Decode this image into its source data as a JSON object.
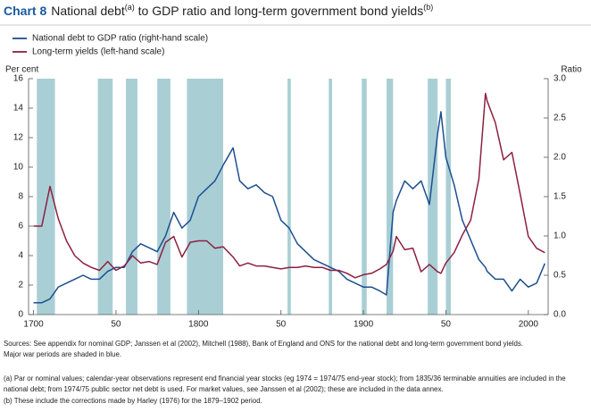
{
  "chart_data": {
    "type": "line",
    "title": {
      "label": "Chart 8",
      "parts": [
        "National debt",
        "(a)",
        " to GDP ratio and long-term government bond yields",
        "(b)"
      ]
    },
    "ylabel": "Per cent",
    "y2label": "Ratio",
    "x": [
      1700,
      1705,
      1710,
      1715,
      1720,
      1725,
      1730,
      1735,
      1740,
      1745,
      1750,
      1755,
      1760,
      1765,
      1770,
      1775,
      1780,
      1785,
      1790,
      1795,
      1800,
      1805,
      1810,
      1815,
      1821,
      1825,
      1830,
      1835,
      1840,
      1845,
      1850,
      1855,
      1860,
      1865,
      1870,
      1875,
      1880,
      1885,
      1890,
      1895,
      1900,
      1905,
      1910,
      1914,
      1918,
      1920,
      1925,
      1930,
      1935,
      1940,
      1945,
      1947,
      1950,
      1955,
      1960,
      1965,
      1970,
      1974,
      1975,
      1980,
      1985,
      1990,
      1995,
      2000,
      2005,
      2010
    ],
    "series": [
      {
        "name": "National debt to GDP ratio (right-hand scale)",
        "color": "#1d4f91",
        "axis": "y2",
        "values": [
          0.15,
          0.15,
          0.2,
          0.35,
          0.4,
          0.45,
          0.5,
          0.45,
          0.45,
          0.55,
          0.6,
          0.6,
          0.8,
          0.9,
          0.85,
          0.8,
          1.0,
          1.3,
          1.1,
          1.2,
          1.5,
          1.6,
          1.7,
          1.9,
          2.12,
          1.7,
          1.6,
          1.65,
          1.55,
          1.5,
          1.2,
          1.1,
          0.9,
          0.8,
          0.7,
          0.65,
          0.6,
          0.55,
          0.45,
          0.4,
          0.35,
          0.35,
          0.3,
          0.25,
          1.3,
          1.45,
          1.7,
          1.6,
          1.7,
          1.4,
          2.3,
          2.58,
          2.0,
          1.65,
          1.2,
          0.95,
          0.7,
          0.6,
          0.55,
          0.45,
          0.45,
          0.3,
          0.45,
          0.35,
          0.4,
          0.65
        ]
      },
      {
        "name": "Long-term yields (left-hand scale)",
        "color": "#8c2040",
        "values": [
          6.0,
          6.0,
          8.7,
          6.5,
          5.0,
          4.0,
          3.5,
          3.2,
          3.0,
          3.6,
          3.0,
          3.3,
          4.0,
          3.5,
          3.6,
          3.4,
          4.9,
          5.3,
          3.9,
          4.9,
          5.0,
          5.0,
          4.5,
          4.6,
          3.9,
          3.3,
          3.5,
          3.3,
          3.3,
          3.2,
          3.1,
          3.2,
          3.2,
          3.3,
          3.2,
          3.2,
          3.0,
          3.0,
          2.8,
          2.5,
          2.7,
          2.8,
          3.1,
          3.4,
          4.3,
          5.3,
          4.4,
          4.5,
          2.9,
          3.4,
          2.9,
          2.8,
          3.5,
          4.2,
          5.4,
          6.4,
          9.2,
          15.0,
          14.5,
          13.0,
          10.5,
          11.0,
          8.2,
          5.3,
          4.5,
          4.2
        ]
      }
    ],
    "shaded_periods": [
      [
        1702,
        1713
      ],
      [
        1739,
        1748
      ],
      [
        1756,
        1763
      ],
      [
        1775,
        1783
      ],
      [
        1793,
        1815
      ],
      [
        1854,
        1856
      ],
      [
        1879,
        1881
      ],
      [
        1899,
        1902
      ],
      [
        1914,
        1918
      ],
      [
        1939,
        1945
      ],
      [
        1950,
        1953
      ]
    ],
    "shade_color": "#a9cfd5",
    "xlim": [
      1697,
      2012
    ],
    "xticks": [
      1700,
      {
        "value": 1750,
        "label": "50"
      },
      1800,
      {
        "value": 1850,
        "label": "50"
      },
      1900,
      {
        "value": 1950,
        "label": "50"
      },
      2000
    ],
    "ylim": [
      0,
      16
    ],
    "yticks": [
      0,
      2,
      4,
      6,
      8,
      10,
      12,
      14,
      16
    ],
    "y2lim": [
      0,
      3
    ],
    "y2ticks": [
      {
        "value": 0,
        "label": "0.0"
      },
      0.5,
      {
        "value": 1,
        "label": "1.0"
      },
      1.5,
      {
        "value": 2,
        "label": "2.0"
      },
      2.5,
      {
        "value": 3,
        "label": "3.0"
      }
    ],
    "grid": false,
    "notes": [
      "Sources: See appendix for nominal GDP; Janssen et al (2002), Mitchell (1988), Bank of England and ONS for the national debt and long-term government bond yields.",
      "Major war periods are shaded in blue.",
      "(a) Par or nominal values; calendar-year observations represent end financial year stocks (eg 1974 = 1974/75 end-year stock); from 1835/36 terminable annuities are included in the",
      "national debt; from 1974/75 public sector net debt is used. For market values, see Janssen et al (2002); these are included in the data annex.",
      "(b) These include the corrections made by Harley (1976) for the 1879–1902 period."
    ]
  }
}
